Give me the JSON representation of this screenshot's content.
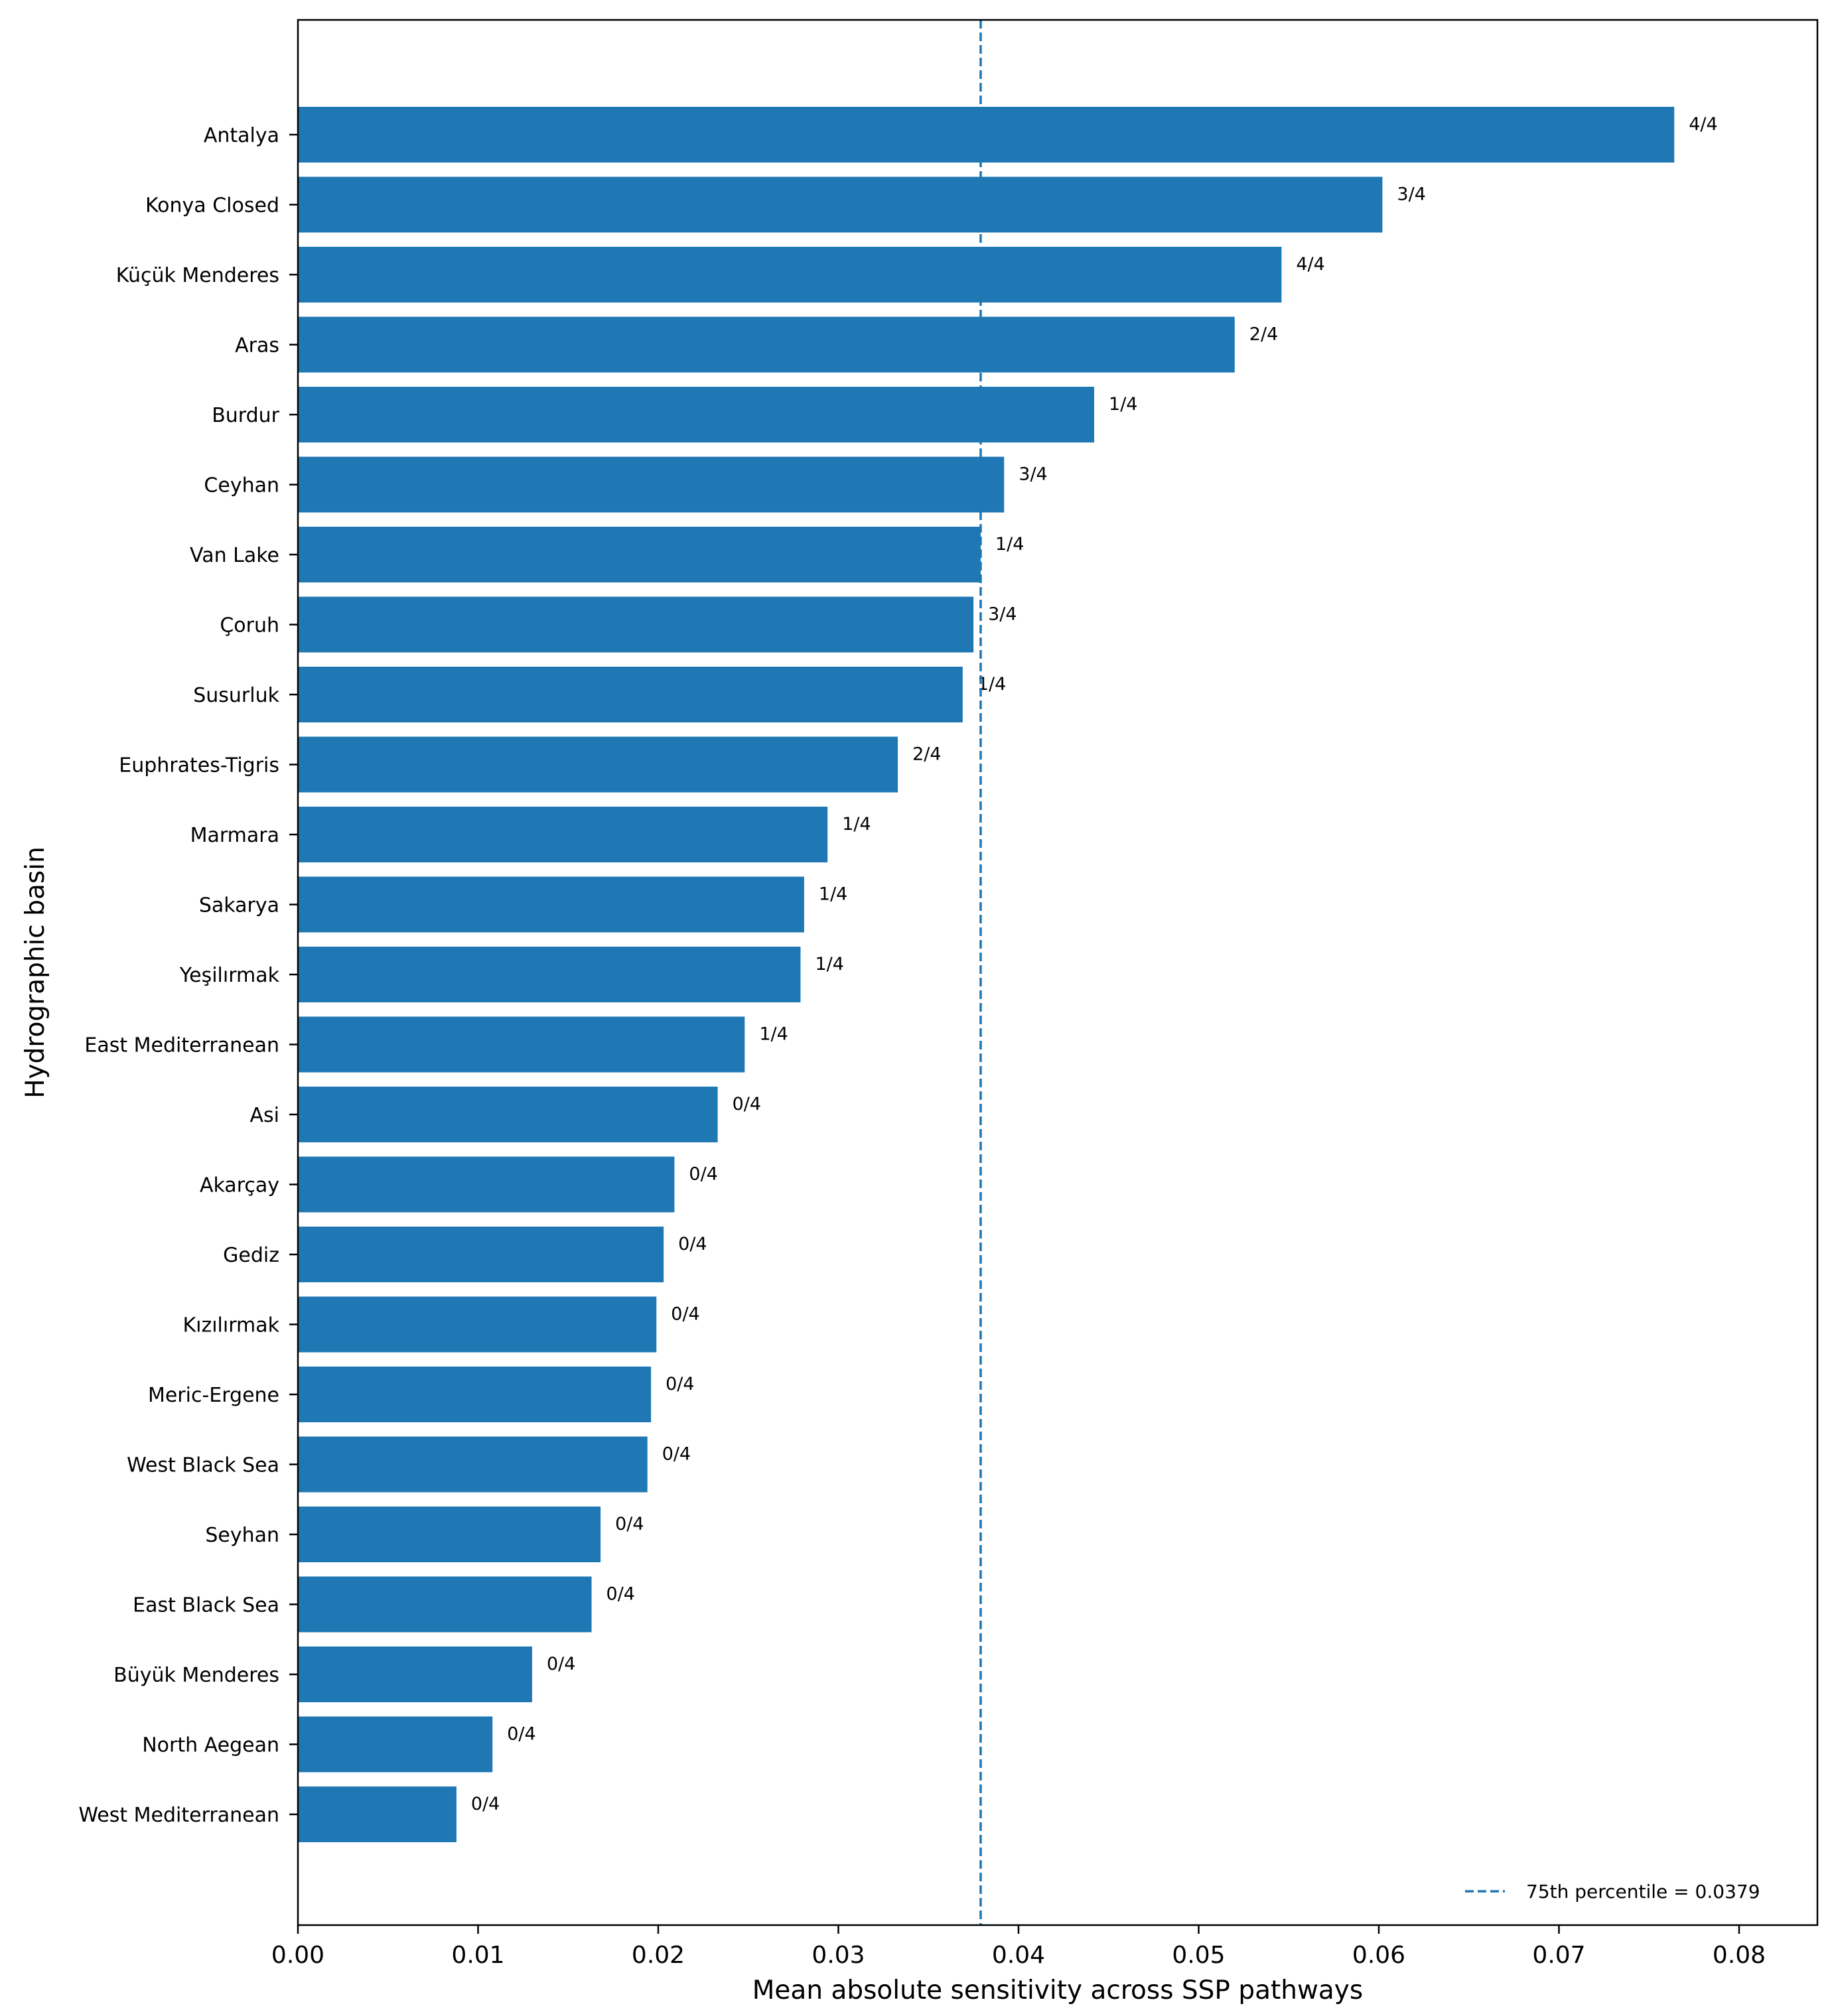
{
  "chart_data": {
    "type": "bar",
    "orientation": "horizontal",
    "title": "",
    "xlabel": "Mean absolute sensitivity across SSP pathways",
    "ylabel": "Hydrographic basin",
    "xlim": [
      0,
      0.085
    ],
    "xticks": [
      "0.00",
      "0.01",
      "0.02",
      "0.03",
      "0.04",
      "0.05",
      "0.06",
      "0.07",
      "0.08"
    ],
    "bar_color": "#1f77b4",
    "grid": false,
    "categories": [
      "Antalya",
      "Konya Closed",
      "Küçük Menderes",
      "Aras",
      "Burdur",
      "Ceyhan",
      "Van Lake",
      "Çoruh",
      "Susurluk",
      "Euphrates-Tigris",
      "Marmara",
      "Sakarya",
      "Yeşilırmak",
      "East Mediterranean",
      "Asi",
      "Akarçay",
      "Gediz",
      "Kızılırmak",
      "Meric-Ergene",
      "West Black Sea",
      "Seyhan",
      "East Black Sea",
      "Büyük Menderes",
      "North Aegean",
      "West Mediterranean"
    ],
    "values": [
      0.0764,
      0.0602,
      0.0546,
      0.052,
      0.0442,
      0.0392,
      0.0379,
      0.0375,
      0.0369,
      0.0333,
      0.0294,
      0.0281,
      0.0279,
      0.0248,
      0.0233,
      0.0209,
      0.0203,
      0.0199,
      0.0196,
      0.0194,
      0.0168,
      0.0163,
      0.013,
      0.0108,
      0.0088
    ],
    "bar_labels": [
      "4/4",
      "3/4",
      "4/4",
      "2/4",
      "1/4",
      "3/4",
      "1/4",
      "3/4",
      "1/4",
      "2/4",
      "1/4",
      "1/4",
      "1/4",
      "1/4",
      "0/4",
      "0/4",
      "0/4",
      "0/4",
      "0/4",
      "0/4",
      "0/4",
      "0/4",
      "0/4",
      "0/4",
      "0/4"
    ],
    "reference_line": {
      "value": 0.0379,
      "style": "dashed",
      "color": "#1f77b4",
      "label": "75th percentile = 0.0379"
    },
    "legend_position": "lower-right"
  }
}
